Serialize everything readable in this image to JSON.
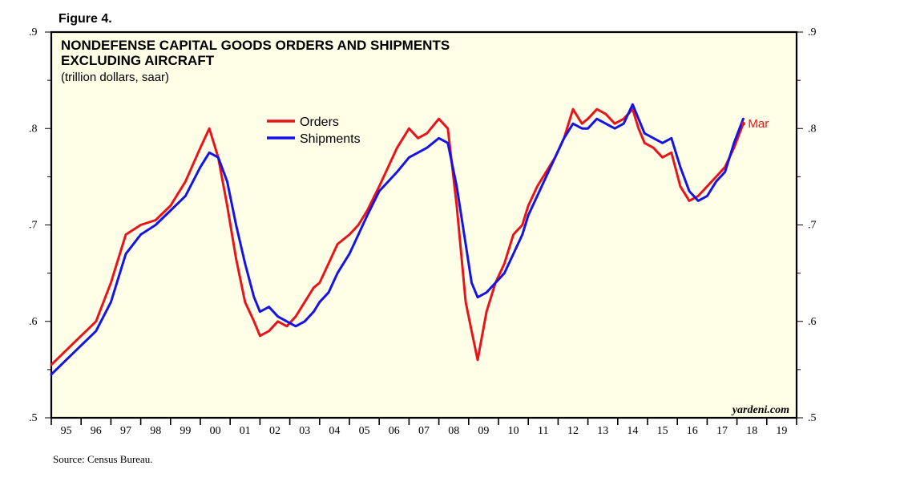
{
  "figure_label": "Figure 4.",
  "source": "Source: Census Bureau.",
  "watermark": "yardeni.com",
  "colors": {
    "orders": "#e8141c",
    "shipments": "#1414e6",
    "plot_bg": "#fffee6"
  },
  "chart_data": {
    "type": "line",
    "title": "NONDEFENSE CAPITAL GOODS ORDERS AND SHIPMENTS",
    "title_line2": "EXCLUDING AIRCRAFT",
    "subtitle": "(trillion dollars, saar)",
    "xlabel": "",
    "ylabel": "",
    "xlim": [
      1995,
      2020
    ],
    "ylim": [
      0.5,
      0.9
    ],
    "y_ticks": [
      0.5,
      0.6,
      0.7,
      0.8,
      0.9
    ],
    "y_tick_labels": [
      ".5",
      ".6",
      ".7",
      ".8",
      ".9"
    ],
    "x_tick_labels": [
      "95",
      "96",
      "97",
      "98",
      "99",
      "00",
      "01",
      "02",
      "03",
      "04",
      "05",
      "06",
      "07",
      "08",
      "09",
      "10",
      "11",
      "12",
      "13",
      "14",
      "15",
      "16",
      "17",
      "18",
      "19"
    ],
    "legend": {
      "position": "top-center",
      "entries": [
        "Orders",
        "Shipments"
      ]
    },
    "annotation": {
      "text": "Mar",
      "series": "Orders",
      "x": 2018.21,
      "y": 0.805
    },
    "series": [
      {
        "name": "Orders",
        "x": [
          1995.0,
          1995.5,
          1996.0,
          1996.5,
          1997.0,
          1997.5,
          1998.0,
          1998.5,
          1999.0,
          1999.5,
          2000.0,
          2000.3,
          2000.6,
          2000.9,
          2001.2,
          2001.5,
          2001.8,
          2002.0,
          2002.3,
          2002.6,
          2002.9,
          2003.2,
          2003.5,
          2003.8,
          2004.0,
          2004.3,
          2004.6,
          2005.0,
          2005.3,
          2005.6,
          2006.0,
          2006.3,
          2006.6,
          2007.0,
          2007.3,
          2007.6,
          2008.0,
          2008.3,
          2008.6,
          2008.9,
          2009.1,
          2009.3,
          2009.6,
          2009.9,
          2010.2,
          2010.5,
          2010.8,
          2011.0,
          2011.3,
          2011.6,
          2011.9,
          2012.2,
          2012.5,
          2012.8,
          2013.0,
          2013.3,
          2013.6,
          2013.9,
          2014.2,
          2014.5,
          2014.7,
          2014.9,
          2015.2,
          2015.5,
          2015.8,
          2016.1,
          2016.4,
          2016.7,
          2017.0,
          2017.3,
          2017.6,
          2017.9,
          2018.21
        ],
        "values": [
          0.555,
          0.57,
          0.585,
          0.6,
          0.64,
          0.69,
          0.7,
          0.705,
          0.72,
          0.745,
          0.78,
          0.8,
          0.77,
          0.72,
          0.665,
          0.62,
          0.6,
          0.585,
          0.59,
          0.6,
          0.595,
          0.605,
          0.62,
          0.635,
          0.64,
          0.66,
          0.68,
          0.69,
          0.7,
          0.715,
          0.74,
          0.76,
          0.78,
          0.8,
          0.79,
          0.795,
          0.81,
          0.8,
          0.72,
          0.62,
          0.59,
          0.56,
          0.61,
          0.64,
          0.66,
          0.69,
          0.7,
          0.72,
          0.74,
          0.755,
          0.77,
          0.79,
          0.82,
          0.805,
          0.81,
          0.82,
          0.815,
          0.805,
          0.81,
          0.82,
          0.8,
          0.785,
          0.78,
          0.77,
          0.775,
          0.74,
          0.725,
          0.73,
          0.74,
          0.75,
          0.76,
          0.78,
          0.805
        ]
      },
      {
        "name": "Shipments",
        "x": [
          1995.0,
          1995.5,
          1996.0,
          1996.5,
          1997.0,
          1997.5,
          1998.0,
          1998.5,
          1999.0,
          1999.5,
          2000.0,
          2000.3,
          2000.6,
          2000.9,
          2001.2,
          2001.5,
          2001.8,
          2002.0,
          2002.3,
          2002.6,
          2002.9,
          2003.2,
          2003.5,
          2003.8,
          2004.0,
          2004.3,
          2004.6,
          2005.0,
          2005.3,
          2005.6,
          2006.0,
          2006.3,
          2006.6,
          2007.0,
          2007.3,
          2007.6,
          2008.0,
          2008.3,
          2008.6,
          2008.9,
          2009.1,
          2009.3,
          2009.6,
          2009.9,
          2010.2,
          2010.5,
          2010.8,
          2011.0,
          2011.3,
          2011.6,
          2011.9,
          2012.2,
          2012.5,
          2012.8,
          2013.0,
          2013.3,
          2013.6,
          2013.9,
          2014.2,
          2014.5,
          2014.7,
          2014.9,
          2015.2,
          2015.5,
          2015.8,
          2016.1,
          2016.4,
          2016.7,
          2017.0,
          2017.3,
          2017.6,
          2017.9,
          2018.21
        ],
        "values": [
          0.545,
          0.56,
          0.575,
          0.59,
          0.62,
          0.67,
          0.69,
          0.7,
          0.715,
          0.73,
          0.76,
          0.775,
          0.77,
          0.745,
          0.7,
          0.66,
          0.625,
          0.61,
          0.615,
          0.605,
          0.6,
          0.595,
          0.6,
          0.61,
          0.62,
          0.63,
          0.65,
          0.67,
          0.69,
          0.71,
          0.735,
          0.745,
          0.755,
          0.77,
          0.775,
          0.78,
          0.79,
          0.785,
          0.74,
          0.68,
          0.64,
          0.625,
          0.63,
          0.64,
          0.65,
          0.67,
          0.69,
          0.71,
          0.73,
          0.75,
          0.77,
          0.79,
          0.805,
          0.8,
          0.8,
          0.81,
          0.805,
          0.8,
          0.805,
          0.825,
          0.81,
          0.795,
          0.79,
          0.785,
          0.79,
          0.76,
          0.735,
          0.725,
          0.73,
          0.745,
          0.755,
          0.785,
          0.81
        ]
      }
    ]
  }
}
